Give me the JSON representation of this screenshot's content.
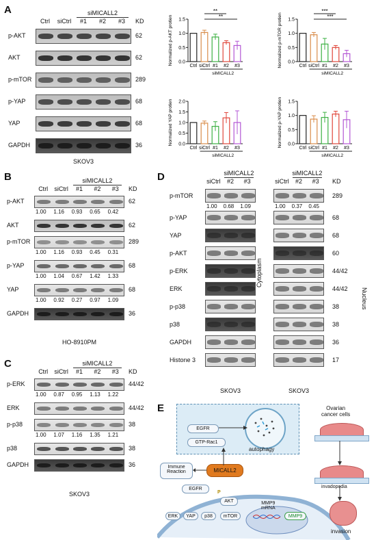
{
  "panels": {
    "A": "A",
    "B": "B",
    "C": "C",
    "D": "D",
    "E": "E"
  },
  "panel_a": {
    "lanes": [
      "Ctrl",
      "siCtrl",
      "#1",
      "#2",
      "#3"
    ],
    "group": "siMICALL2",
    "kd_header": "KD",
    "rows": [
      {
        "label": "p-AKT",
        "kd": "62"
      },
      {
        "label": "AKT",
        "kd": "62"
      },
      {
        "label": "p-mTOR",
        "kd": "289"
      },
      {
        "label": "p-YAP",
        "kd": "68"
      },
      {
        "label": "YAP",
        "kd": "68"
      },
      {
        "label": "GAPDH",
        "kd": "36"
      }
    ],
    "cell": "SKOV3"
  },
  "chart_data": [
    {
      "type": "bar",
      "ylabel": "Normalized p-AKT protien",
      "categories": [
        "Ctrl",
        "siCtrl",
        "#1",
        "#2",
        "#3"
      ],
      "group_label": "siMICALL2",
      "values": [
        1.0,
        1.03,
        0.87,
        0.67,
        0.57
      ],
      "errors": [
        0,
        0.08,
        0.1,
        0.07,
        0.15
      ],
      "ylim": [
        0,
        1.5
      ],
      "yticks": [
        "0.0",
        "0.5",
        "1.0",
        "1.5"
      ],
      "significance": [
        "**",
        "**"
      ],
      "colors": [
        "#222222",
        "#d98c4a",
        "#3cb043",
        "#e0463a",
        "#b355d4"
      ]
    },
    {
      "type": "bar",
      "ylabel": "Normalized p-mTOR protien",
      "categories": [
        "Ctrl",
        "siCtrl",
        "#1",
        "#2",
        "#3"
      ],
      "group_label": "siMICALL2",
      "values": [
        1.0,
        0.95,
        0.62,
        0.5,
        0.28
      ],
      "errors": [
        0,
        0.08,
        0.2,
        0.07,
        0.12
      ],
      "ylim": [
        0,
        1.5
      ],
      "yticks": [
        "0.0",
        "0.5",
        "1.0",
        "1.5"
      ],
      "significance": [
        "***",
        "***"
      ],
      "colors": [
        "#222222",
        "#d98c4a",
        "#3cb043",
        "#e0463a",
        "#b355d4"
      ]
    },
    {
      "type": "bar",
      "ylabel": "Normalized YAP protien",
      "categories": [
        "Ctrl",
        "siCtrl",
        "#1",
        "#2",
        "#3"
      ],
      "group_label": "siMICALL2",
      "values": [
        1.0,
        0.97,
        0.82,
        1.22,
        1.0
      ],
      "errors": [
        0,
        0.1,
        0.22,
        0.25,
        0.55
      ],
      "ylim": [
        0,
        2.0
      ],
      "yticks": [
        "0.0",
        "0.5",
        "1.0",
        "1.5",
        "2.0"
      ],
      "significance": [],
      "colors": [
        "#222222",
        "#d98c4a",
        "#3cb043",
        "#e0463a",
        "#b355d4"
      ]
    },
    {
      "type": "bar",
      "ylabel": "Normalized p-YAP protien",
      "categories": [
        "Ctrl",
        "siCtrl",
        "#1",
        "#2",
        "#3"
      ],
      "group_label": "siMICALL2",
      "values": [
        1.0,
        0.87,
        0.93,
        1.05,
        0.85
      ],
      "errors": [
        0,
        0.12,
        0.18,
        0.1,
        0.3
      ],
      "ylim": [
        0,
        1.5
      ],
      "yticks": [
        "0.0",
        "0.5",
        "1.0",
        "1.5"
      ],
      "significance": [],
      "colors": [
        "#222222",
        "#d98c4a",
        "#3cb043",
        "#e0463a",
        "#b355d4"
      ]
    }
  ],
  "panel_b": {
    "lanes": [
      "Ctrl",
      "siCtrl",
      "#1",
      "#2",
      "#3"
    ],
    "group": "siMICALL2",
    "kd_header": "KD",
    "rows": [
      {
        "label": "p-AKT",
        "kd": "62",
        "values": [
          "1.00",
          "1.16",
          "0.93",
          "0.65",
          "0.42"
        ]
      },
      {
        "label": "AKT",
        "kd": "62",
        "values": []
      },
      {
        "label": "p-mTOR",
        "kd": "289",
        "values": [
          "1.00",
          "1.16",
          "0.93",
          "0.45",
          "0.31"
        ]
      },
      {
        "label": "p-YAP",
        "kd": "68",
        "values": [
          "1.00",
          "1.04",
          "0.67",
          "1.42",
          "1.33"
        ]
      },
      {
        "label": "YAP",
        "kd": "68",
        "values": [
          "1.00",
          "0.92",
          "0.27",
          "0.97",
          "1.09"
        ]
      },
      {
        "label": "GAPDH",
        "kd": "36",
        "values": []
      }
    ],
    "cell": "HO-8910PM"
  },
  "panel_c": {
    "lanes": [
      "Ctrl",
      "siCtrl",
      "#1",
      "#2",
      "#3"
    ],
    "group": "siMICALL2",
    "kd_header": "KD",
    "rows": [
      {
        "label": "p-ERK",
        "kd": "44/42",
        "values": [
          "1.00",
          "0.87",
          "0.95",
          "1.13",
          "1.22"
        ]
      },
      {
        "label": "ERK",
        "kd": "44/42",
        "values": []
      },
      {
        "label": "p-p38",
        "kd": "38",
        "values": [
          "1.00",
          "1.07",
          "1.16",
          "1.35",
          "1.21"
        ]
      },
      {
        "label": "p38",
        "kd": "38",
        "values": []
      },
      {
        "label": "GAPDH",
        "kd": "36",
        "values": []
      }
    ],
    "cell": "SKOV3"
  },
  "panel_d": {
    "lanes": [
      "siCtrl",
      "#2",
      "#3"
    ],
    "group": "siMICALL2",
    "kd_header": "KD",
    "rows": [
      {
        "label": "p-mTOR",
        "kd": "289",
        "cyto": [
          "1.00",
          "0.68",
          "1.09"
        ],
        "nuc": [
          "1.00",
          "0.37",
          "0.45"
        ]
      },
      {
        "label": "p-YAP",
        "kd": "68",
        "cyto": [],
        "nuc": []
      },
      {
        "label": "YAP",
        "kd": "68",
        "cyto": [],
        "nuc": []
      },
      {
        "label": "p-AKT",
        "kd": "60",
        "cyto": [],
        "nuc": []
      },
      {
        "label": "p-ERK",
        "kd": "44/42",
        "cyto": [],
        "nuc": []
      },
      {
        "label": "ERK",
        "kd": "44/42",
        "cyto": [],
        "nuc": []
      },
      {
        "label": "p-p38",
        "kd": "38",
        "cyto": [],
        "nuc": []
      },
      {
        "label": "p38",
        "kd": "38",
        "cyto": [],
        "nuc": []
      },
      {
        "label": "GAPDH",
        "kd": "36",
        "cyto": [],
        "nuc": []
      },
      {
        "label": "Histone 3",
        "kd": "17",
        "cyto": [],
        "nuc": []
      }
    ],
    "cytoplasm": "Cytoplasm",
    "nucleus": "Nucleus",
    "cell_left": "SKOV3",
    "cell_right": "SKOV3"
  },
  "panel_e": {
    "egfr_top": "EGFR",
    "gtp": "GTP-Rac1",
    "autophagy": "autophagy",
    "immune": "Immune\nReaction",
    "micall2": "MICALL2",
    "egfr": "EGFR",
    "akt": "AKT",
    "erk": "ERK",
    "yap": "YAP",
    "p38": "p38",
    "mtor": "mTOR",
    "mmp9_mrna": "MMP9\nmRNA",
    "mmp9": "MMP9",
    "p": "P",
    "ovarian": "Ovarian\ncancer cells",
    "invadopodia": "invadopodia",
    "invasion": "invasion"
  }
}
